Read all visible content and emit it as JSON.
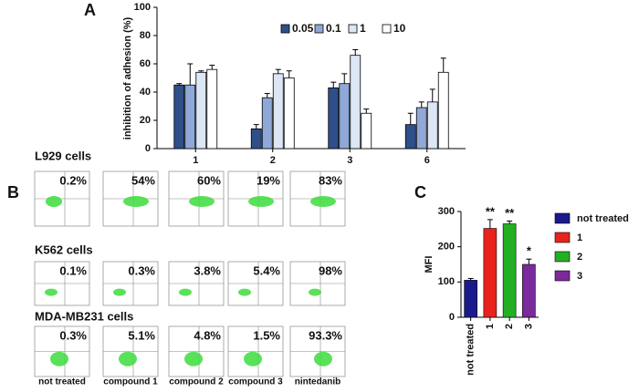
{
  "chart_data": [
    {
      "type": "bar",
      "panel_label": "A",
      "ylabel": "inhibition of adhesion (%)",
      "categories": [
        "1",
        "2",
        "3",
        "6"
      ],
      "series": [
        {
          "name": "0.05",
          "color": "#2f4f8a",
          "values": [
            45,
            14,
            43,
            17
          ],
          "errors": [
            1,
            3,
            4,
            8
          ]
        },
        {
          "name": "0.1",
          "color": "#8fa8d8",
          "values": [
            45,
            36,
            46,
            29
          ],
          "errors": [
            15,
            3,
            7,
            4
          ]
        },
        {
          "name": "1",
          "color": "#dce6f5",
          "values": [
            54,
            53,
            66,
            33
          ],
          "errors": [
            1,
            3,
            4,
            9
          ]
        },
        {
          "name": "10",
          "color": "#ffffff",
          "values": [
            56,
            50,
            25,
            54
          ],
          "errors": [
            3,
            5,
            3,
            10
          ]
        }
      ],
      "ylim": [
        0,
        100
      ],
      "yticks": [
        0,
        20,
        40,
        60,
        80,
        100
      ]
    },
    {
      "type": "bar",
      "panel_label": "C",
      "ylabel": "MFI",
      "categories": [
        "not treated",
        "1",
        "2",
        "3"
      ],
      "values": [
        105,
        252,
        265,
        150
      ],
      "errors": [
        5,
        25,
        8,
        15
      ],
      "colors": [
        "#1a1a8c",
        "#e8231c",
        "#22b022",
        "#7a2a9a"
      ],
      "significance": [
        null,
        "**",
        "**",
        "*"
      ],
      "ylim": [
        0,
        300
      ],
      "yticks": [
        0,
        100,
        200,
        300
      ]
    }
  ],
  "flow_cytometry": {
    "panel_label": "B",
    "columns": [
      "not treated",
      "compound 1",
      "compound 2",
      "compound 3",
      "nintedanib"
    ],
    "rows": [
      {
        "label": "L929 cells",
        "values": [
          "0.2%",
          "54%",
          "60%",
          "19%",
          "83%"
        ]
      },
      {
        "label": "K562 cells",
        "values": [
          "0.1%",
          "0.3%",
          "3.8%",
          "5.4%",
          "98%"
        ]
      },
      {
        "label": "MDA-MB231 cells",
        "values": [
          "0.3%",
          "5.1%",
          "4.8%",
          "1.5%",
          "93.3%"
        ]
      }
    ]
  }
}
